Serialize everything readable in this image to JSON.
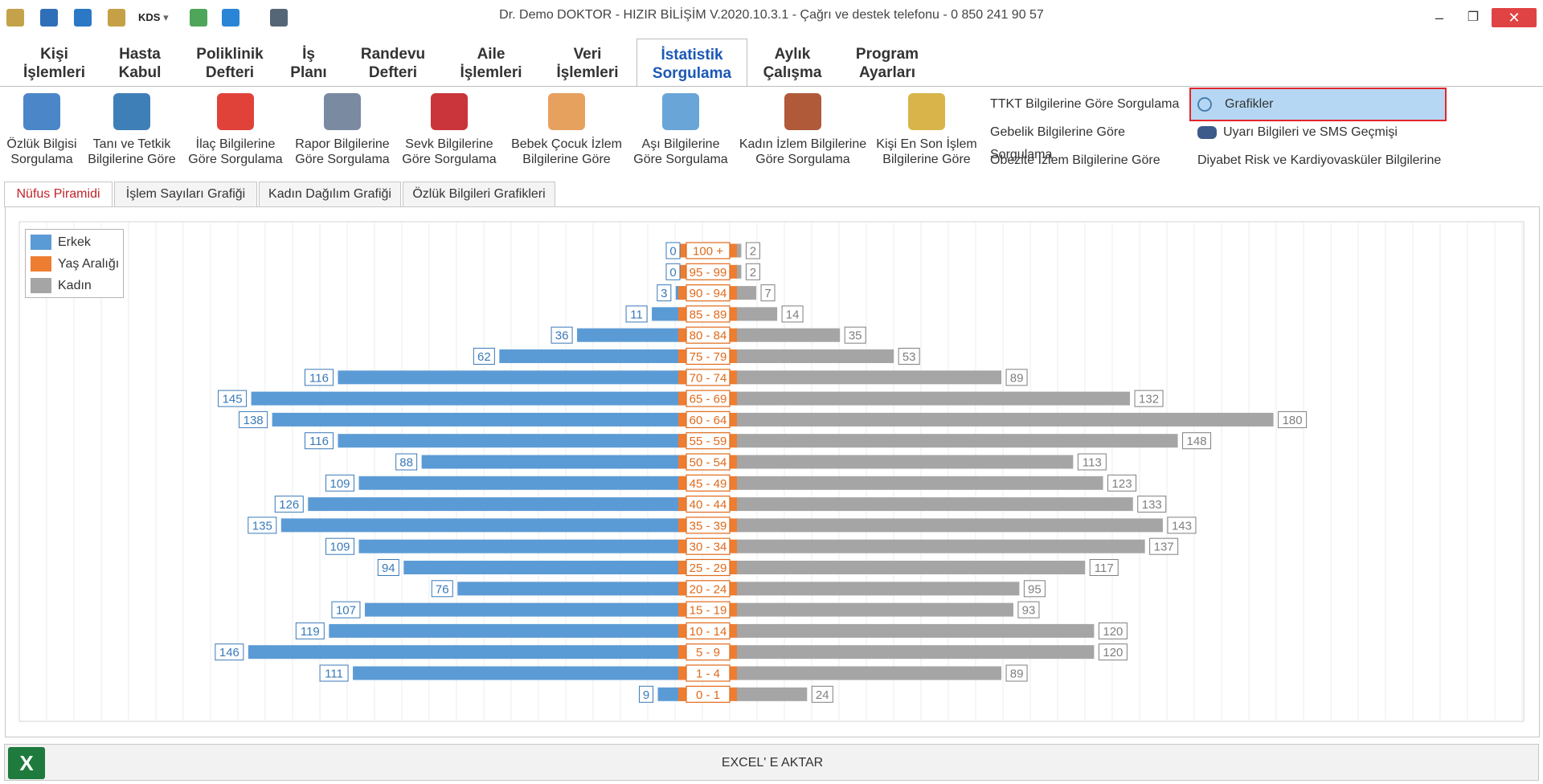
{
  "window": {
    "title": "Dr. Demo DOKTOR - HIZIR BİLİŞİM V.2020.10.3.1 - Çağrı ve destek telefonu - 0 850 241 90 57",
    "quick_access": [
      "map-icon",
      "search-icon",
      "refresh-icon",
      "clipboard-icon",
      "kds-dropdown",
      "leaf-icon",
      "ie-icon",
      "printer-icon"
    ],
    "kds_label": "KDS",
    "minimize": "–",
    "restore": "❐",
    "close": "✕"
  },
  "ribbon": {
    "tabs": [
      {
        "line1": "Kişi",
        "line2": "İşlemleri"
      },
      {
        "line1": "Hasta",
        "line2": "Kabul"
      },
      {
        "line1": "Poliklinik",
        "line2": "Defteri"
      },
      {
        "line1": "İş",
        "line2": "Planı"
      },
      {
        "line1": "Randevu",
        "line2": "Defteri"
      },
      {
        "line1": "Aile",
        "line2": "İşlemleri"
      },
      {
        "line1": "Veri",
        "line2": "İşlemleri"
      },
      {
        "line1": "İstatistik",
        "line2": "Sorgulama"
      },
      {
        "line1": "Aylık",
        "line2": "Çalışma"
      },
      {
        "line1": "Program",
        "line2": "Ayarları"
      }
    ],
    "buttons": [
      {
        "line1": "Özlük Bilgisi",
        "line2": "Sorgulama",
        "icon": "person-id-icon",
        "color": "#4a86c8"
      },
      {
        "line1": "Tanı ve Tetkik",
        "line2": "Bilgilerine Göre",
        "icon": "stethoscope-icon",
        "color": "#3f7fb8"
      },
      {
        "line1": "İlaç Bilgilerine",
        "line2": "Göre Sorgulama",
        "icon": "pill-icon",
        "color": "#e0423a"
      },
      {
        "line1": "Rapor Bilgilerine",
        "line2": "Göre Sorgulama",
        "icon": "report-icon",
        "color": "#7a8aa0"
      },
      {
        "line1": "Sevk Bilgilerine",
        "line2": "Göre Sorgulama",
        "icon": "ambulance-icon",
        "color": "#c9353a"
      },
      {
        "line1": "Bebek Çocuk İzlem",
        "line2": "Bilgilerine Göre",
        "icon": "baby-icon",
        "color": "#e7a15f"
      },
      {
        "line1": "Aşı Bilgilerine",
        "line2": "Göre Sorgulama",
        "icon": "syringe-icon",
        "color": "#6aa5d8"
      },
      {
        "line1": "Kadın İzlem Bilgilerine",
        "line2": "Göre Sorgulama",
        "icon": "woman-icon",
        "color": "#b05a3a"
      },
      {
        "line1": "Kişi En Son İşlem",
        "line2": "Bilgilerine Göre",
        "icon": "clipboard-icon",
        "color": "#d8b44a"
      }
    ],
    "links_col1": [
      "TTKT Bilgilerine Göre Sorgulama",
      "Gebelik Bilgilerine Göre Sorgulama",
      "Obezite İzlem Bilgilerine Göre"
    ],
    "links_col2": [
      "Grafikler",
      "Uyarı Bilgileri ve SMS Geçmişi",
      "Diyabet Risk ve Kardiyovasküler Bilgilerine"
    ]
  },
  "content_tabs": [
    "Nüfus Piramidi",
    "İşlem Sayıları Grafiği",
    "Kadın Dağılım Grafiği",
    "Özlük Bilgileri Grafikleri"
  ],
  "chart_data": {
    "type": "bar",
    "orientation": "horizontal-pyramid",
    "categories": [
      "100 +",
      "95 - 99",
      "90 - 94",
      "85 - 89",
      "80 - 84",
      "75 - 79",
      "70 - 74",
      "65 - 69",
      "60 - 64",
      "55 - 59",
      "50 - 54",
      "45 - 49",
      "40 - 44",
      "35 - 39",
      "30 - 34",
      "25 - 29",
      "20 - 24",
      "15 - 19",
      "10 - 14",
      "5 - 9",
      "1 - 4",
      "0 - 1"
    ],
    "series": [
      {
        "name": "Erkek",
        "color": "#5b9bd5",
        "label_color": "#3a7ab8",
        "values": [
          0,
          0,
          3,
          11,
          36,
          62,
          116,
          145,
          138,
          116,
          88,
          109,
          126,
          135,
          109,
          94,
          76,
          107,
          119,
          146,
          111,
          9
        ]
      },
      {
        "name": "Yaş Aralığı",
        "color": "#ed7d31",
        "label_color": "#e06a1c"
      },
      {
        "name": "Kadın",
        "color": "#a5a5a5",
        "label_color": "#7f7f7f",
        "values": [
          2,
          2,
          7,
          14,
          35,
          53,
          89,
          132,
          180,
          148,
          113,
          123,
          133,
          143,
          137,
          117,
          95,
          93,
          120,
          120,
          89,
          24
        ]
      }
    ],
    "legend": "top-left",
    "grid": true
  },
  "bottom": {
    "export_label": "EXCEL' E AKTAR",
    "excel_glyph": "X"
  }
}
